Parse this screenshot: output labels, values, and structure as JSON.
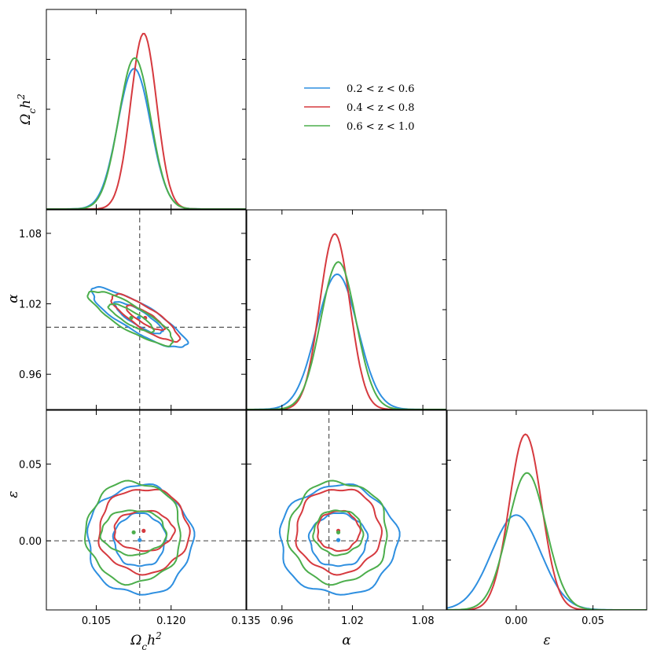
{
  "chart_data": {
    "type": "corner-plot",
    "colors": {
      "z_0.2_0.6": "#2e8fe0",
      "z_0.4_0.8": "#d63a3f",
      "z_0.6_1.0": "#4cae4c",
      "truth_line": "#555555"
    },
    "legend": {
      "position": "upper-right (in empty triangle)",
      "entries": [
        {
          "key": "z_0.2_0.6",
          "label": "0.2 < z < 0.6"
        },
        {
          "key": "z_0.4_0.8",
          "label": "0.4 < z < 0.8"
        },
        {
          "key": "z_0.6_1.0",
          "label": "0.6 < z < 1.0"
        }
      ]
    },
    "parameters": [
      {
        "key": "omega",
        "label": "Ω_c h^2",
        "range": [
          0.095,
          0.135
        ],
        "ticks": [
          0.105,
          0.12,
          0.135
        ],
        "tick_labels": [
          "0.105",
          "0.120",
          "0.135"
        ],
        "truth": 0.1137
      },
      {
        "key": "alpha",
        "label": "α",
        "range": [
          0.93,
          1.1
        ],
        "ticks": [
          0.96,
          1.02,
          1.08
        ],
        "tick_labels": [
          "0.96",
          "1.02",
          "1.08"
        ],
        "truth": 1.0
      },
      {
        "key": "epsilon",
        "label": "ε",
        "range": [
          -0.045,
          0.085
        ],
        "ticks": [
          0.0,
          0.05
        ],
        "tick_labels": [
          "0.00",
          "0.05"
        ],
        "truth": 0.0
      }
    ],
    "diagonal_axis_labels": {
      "omega": "Ω_c h^2"
    },
    "marginals": {
      "omega": {
        "z_0.2_0.6": {
          "mean": 0.1126,
          "sigma": 0.0033,
          "peak": 0.8
        },
        "z_0.4_0.8": {
          "mean": 0.1145,
          "sigma": 0.0026,
          "peak": 1.0
        },
        "z_0.6_1.0": {
          "mean": 0.1127,
          "sigma": 0.0032,
          "peak": 0.86
        }
      },
      "alpha": {
        "z_0.2_0.6": {
          "mean": 1.007,
          "sigma": 0.0175,
          "peak": 0.77
        },
        "z_0.4_0.8": {
          "mean": 1.005,
          "sigma": 0.0128,
          "peak": 1.0
        },
        "z_0.6_1.0": {
          "mean": 1.008,
          "sigma": 0.015,
          "peak": 0.84
        }
      },
      "epsilon": {
        "z_0.2_0.6": {
          "mean": 0.0,
          "sigma": 0.016,
          "peak": 0.54
        },
        "z_0.4_0.8": {
          "mean": 0.006,
          "sigma": 0.0105,
          "peak": 1.0
        },
        "z_0.6_1.0": {
          "mean": 0.007,
          "sigma": 0.0125,
          "peak": 0.78
        }
      }
    },
    "contours": {
      "omega_alpha": {
        "z_0.2_0.6": {
          "center": [
            0.1135,
            1.008
          ],
          "inner_rx": 0.0048,
          "inner_ry": 0.0135,
          "outer_rx": 0.0095,
          "outer_ry": 0.0255,
          "corr": -0.85
        },
        "z_0.4_0.8": {
          "center": [
            0.1148,
            1.008
          ],
          "inner_rx": 0.0038,
          "inner_ry": 0.0105,
          "outer_rx": 0.0068,
          "outer_ry": 0.02,
          "corr": -0.85
        },
        "z_0.6_1.0": {
          "center": [
            0.112,
            1.008
          ],
          "inner_rx": 0.0045,
          "inner_ry": 0.012,
          "outer_rx": 0.0085,
          "outer_ry": 0.023,
          "corr": -0.85
        }
      },
      "omega_epsilon": {
        "z_0.2_0.6": {
          "center": [
            0.1137,
            0.0005
          ],
          "inner_rx": 0.0052,
          "inner_ry": 0.0172,
          "outer_rx": 0.0105,
          "outer_ry": 0.0355
        },
        "z_0.4_0.8": {
          "center": [
            0.1145,
            0.0065
          ],
          "inner_rx": 0.006,
          "inner_ry": 0.013,
          "outer_rx": 0.009,
          "outer_ry": 0.0275
        },
        "z_0.6_1.0": {
          "center": [
            0.1125,
            0.0055
          ],
          "inner_rx": 0.0065,
          "inner_ry": 0.0145,
          "outer_rx": 0.0095,
          "outer_ry": 0.033
        }
      },
      "alpha_epsilon": {
        "z_0.2_0.6": {
          "center": [
            1.008,
            0.0005
          ],
          "inner_rx": 0.0245,
          "inner_ry": 0.0172,
          "outer_rx": 0.05,
          "outer_ry": 0.0355
        },
        "z_0.4_0.8": {
          "center": [
            1.008,
            0.0065
          ],
          "inner_rx": 0.018,
          "inner_ry": 0.013,
          "outer_rx": 0.036,
          "outer_ry": 0.0275
        },
        "z_0.6_1.0": {
          "center": [
            1.008,
            0.0055
          ],
          "inner_rx": 0.021,
          "inner_ry": 0.0145,
          "outer_rx": 0.042,
          "outer_ry": 0.033
        }
      }
    },
    "grid": false
  }
}
